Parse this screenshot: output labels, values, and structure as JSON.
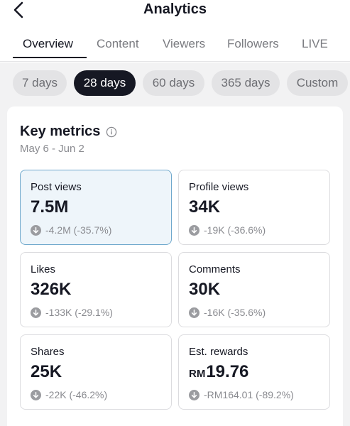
{
  "header": {
    "title": "Analytics",
    "back_icon": "chevron-left-icon"
  },
  "tabs": [
    {
      "label": "Overview",
      "active": true
    },
    {
      "label": "Content",
      "active": false
    },
    {
      "label": "Viewers",
      "active": false
    },
    {
      "label": "Followers",
      "active": false
    },
    {
      "label": "LIVE",
      "active": false
    }
  ],
  "periods": [
    {
      "label": "7 days",
      "active": false
    },
    {
      "label": "28 days",
      "active": true
    },
    {
      "label": "60 days",
      "active": false
    },
    {
      "label": "365 days",
      "active": false
    },
    {
      "label": "Custom",
      "active": false
    }
  ],
  "key_metrics": {
    "title": "Key metrics",
    "info_icon": "info-icon",
    "date_range": "May 6 - Jun 2",
    "metrics": [
      {
        "label": "Post views",
        "value": "7.5M",
        "currency": "",
        "change": "-4.2M (-35.7%)",
        "selected": true
      },
      {
        "label": "Profile views",
        "value": "34K",
        "currency": "",
        "change": "-19K (-36.6%)",
        "selected": false
      },
      {
        "label": "Likes",
        "value": "326K",
        "currency": "",
        "change": "-133K (-29.1%)",
        "selected": false
      },
      {
        "label": "Comments",
        "value": "30K",
        "currency": "",
        "change": "-16K (-35.6%)",
        "selected": false
      },
      {
        "label": "Shares",
        "value": "25K",
        "currency": "",
        "change": "-22K (-46.2%)",
        "selected": false
      },
      {
        "label": "Est. rewards",
        "value": "19.76",
        "currency": "RM",
        "change": "-RM164.01 (-89.2%)",
        "selected": false
      }
    ]
  },
  "colors": {
    "text_primary": "#161823",
    "text_secondary": "#8a8b90",
    "selected_card_bg": "#eef5fa",
    "selected_card_border": "#6fa8cc",
    "active_chip_bg": "#161823"
  }
}
